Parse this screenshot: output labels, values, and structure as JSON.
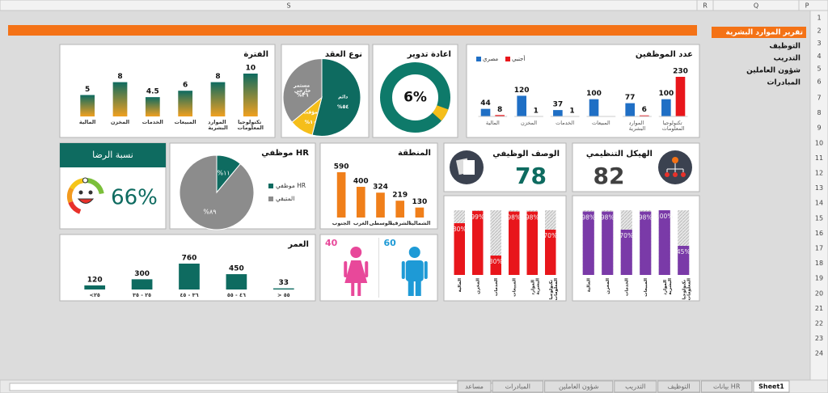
{
  "sheet": {
    "columns": [
      "S",
      "R",
      "Q",
      "P"
    ],
    "rows": [
      1,
      2,
      3,
      4,
      5,
      6,
      7,
      8,
      9,
      10,
      11,
      12,
      13,
      14,
      15,
      16,
      17,
      18,
      19,
      20,
      21,
      22,
      23,
      24
    ],
    "tabs": [
      "Sheet1",
      "بيانات HR",
      "التوظيف",
      "التدريب",
      "شؤون العاملين",
      "المبادرات",
      "مساعد"
    ]
  },
  "menu": {
    "title": "تقرير الموارد البشرية",
    "items": [
      "التوظيف",
      "التدريب",
      "شؤون العاملين",
      "المبادرات"
    ]
  },
  "chart_data": [
    {
      "type": "bar",
      "title": "الفترة",
      "categories": [
        "المالية",
        "المخزن",
        "الخدمات",
        "المبيعات",
        "الموارد البشرية",
        "تكنولوجيا المعلومات"
      ],
      "values": [
        5,
        8,
        4.5,
        6,
        8,
        10
      ],
      "color": "#0e6b60",
      "color_bottom": "#f0a020"
    },
    {
      "type": "pie",
      "title": "نوع العقد",
      "categories": [
        "دائم",
        "مؤقت",
        "مستمر خارجي"
      ],
      "values": [
        54,
        10,
        36
      ],
      "value_labels": [
        "%٥٤",
        "%١٠",
        "%٣٦"
      ],
      "colors": [
        "#0e6b60",
        "#f5be1a",
        "#8c8c8c"
      ]
    },
    {
      "type": "donut",
      "title": "اعادة تدوير",
      "value": 6,
      "value_label": "6%",
      "color": "#f5be1a",
      "track_color": "#0e7a6a"
    },
    {
      "type": "grouped_bar",
      "title": "عدد الموظفين",
      "categories": [
        "المالية",
        "المخزن",
        "الخدمات",
        "المبيعات",
        "الموارد البشرية",
        "تكنولوجيا المعلومات"
      ],
      "series": [
        {
          "name": "مصري",
          "color": "#1f6fc5",
          "values": [
            44,
            120,
            37,
            100,
            77,
            100
          ]
        },
        {
          "name": "أجنبي",
          "color": "#e8161b",
          "values": [
            8,
            1,
            1,
            null,
            6,
            230
          ]
        }
      ]
    },
    {
      "type": "kpi",
      "title": "نسبة الرضا",
      "value": 66,
      "value_label": "66%",
      "color": "#0e6b60"
    },
    {
      "type": "pie",
      "title": "موظفي HR",
      "categories": [
        "موظفي HR",
        "المتبقي"
      ],
      "values": [
        11,
        89
      ],
      "value_labels": [
        "%١١",
        "%٨٩"
      ],
      "colors": [
        "#0e6b60",
        "#8c8c8c"
      ],
      "legend": "right"
    },
    {
      "type": "bar",
      "title": "المنطقة",
      "categories": [
        "الجنوب",
        "الغرب",
        "الوسطى",
        "الشرقية",
        "الشمالية"
      ],
      "values": [
        590,
        400,
        324,
        219,
        130
      ],
      "color": "#f07f1a"
    },
    {
      "type": "kpi",
      "title": "الوصف الوظيفي",
      "value": 78,
      "color": "#0e6b60"
    },
    {
      "type": "kpi",
      "title": "الهيكل التنظيمي",
      "value": 82,
      "color": "#404040"
    },
    {
      "type": "bar",
      "title": "العمر",
      "categories": [
        "<٢٥",
        "٢٥ - ٣٥",
        "٣٦ - ٤٥",
        "٤٦ - ٥٥",
        "> ٥٥"
      ],
      "values": [
        120,
        300,
        760,
        450,
        33
      ],
      "color": "#0e6b60"
    },
    {
      "type": "pictogram",
      "values": [
        40,
        60
      ],
      "colors": [
        "#e8489a",
        "#1e9ad6"
      ]
    },
    {
      "type": "percent_bar",
      "categories": [
        "المالية",
        "المخزن",
        "الخدمات",
        "المبيعات",
        "الموارد البشرية",
        "تكنولوجيا المعلومات"
      ],
      "values": [
        80,
        99,
        30,
        98,
        98,
        70
      ],
      "value_labels": [
        "80%",
        "99%",
        "30%",
        "98%",
        "98%",
        "70%"
      ],
      "color": "#e8161b",
      "ylim": [
        0,
        100
      ]
    },
    {
      "type": "percent_bar",
      "categories": [
        "المالية",
        "المخزن",
        "الخدمات",
        "المبيعات",
        "الموارد البشرية",
        "تكنولوجيا المعلومات"
      ],
      "values": [
        98,
        98,
        70,
        98,
        100,
        45
      ],
      "value_labels": [
        "98%",
        "98%",
        "70%",
        "98%",
        "100%",
        "45%"
      ],
      "color": "#7a3aa8",
      "ylim": [
        0,
        100
      ]
    }
  ]
}
